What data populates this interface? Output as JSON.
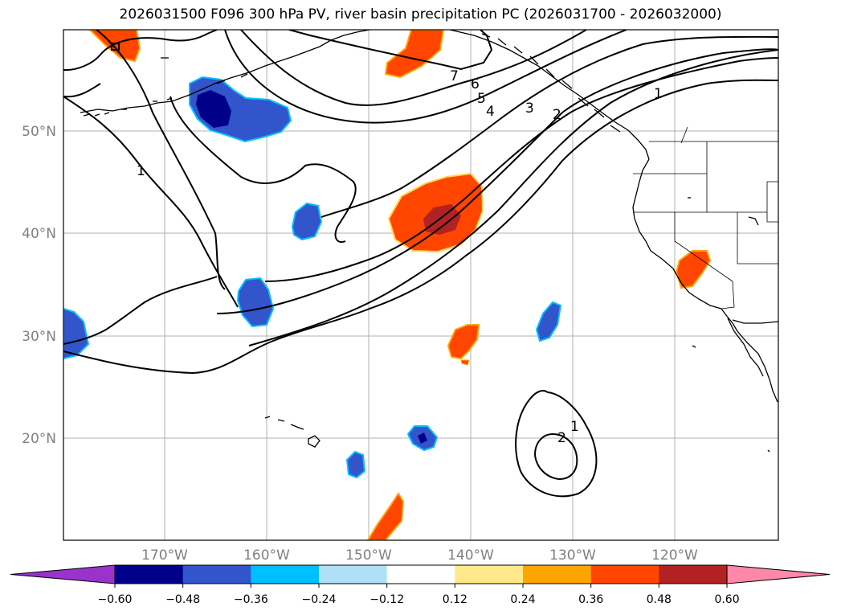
{
  "title": "2026031500 F096 300 hPa PV, river basin precipitation PC (2026031700 - 2026032000)",
  "map": {
    "lat_labels": [
      "50°N",
      "40°N",
      "30°N",
      "20°N"
    ],
    "lon_labels": [
      "170°W",
      "160°W",
      "150°W",
      "140°W",
      "130°W",
      "120°W"
    ],
    "contour_labels": [
      "7",
      "6",
      "5",
      "4",
      "3",
      "2",
      "1",
      "1",
      "1",
      "2"
    ],
    "axis_label_color": "#808080"
  },
  "colorbar": {
    "tick_labels": [
      "−0.60",
      "−0.48",
      "−0.36",
      "−0.24",
      "−0.12",
      "0.12",
      "0.24",
      "0.36",
      "0.48",
      "0.60"
    ],
    "colors": [
      "#9933cc",
      "#00008b",
      "#3355cc",
      "#00bfff",
      "#b0e0f8",
      "#ffffff",
      "#ffe88a",
      "#ffa500",
      "#ff4500",
      "#b22222",
      "#ff88aa"
    ]
  }
}
